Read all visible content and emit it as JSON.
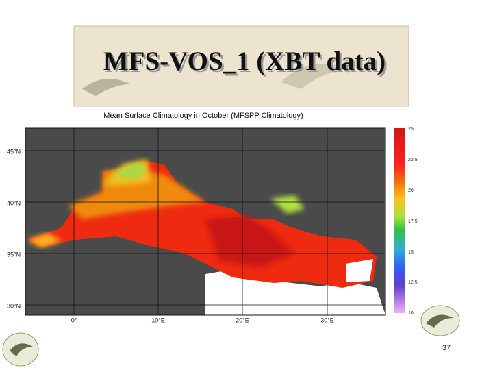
{
  "slide": {
    "title": "MFS-VOS_1 (XBT data)",
    "page_number": "37"
  },
  "map": {
    "title": "Mean Surface Climatology in October (MFSPP Climatology)",
    "latitude_labels": [
      "45°N",
      "40°N",
      "35°N",
      "30°N"
    ],
    "longitude_labels": [
      "0°",
      "10°E",
      "20°E",
      "30°E"
    ],
    "colorbar_labels": [
      "25",
      "22.5",
      "20",
      "17.5",
      "15",
      "12.5",
      "10"
    ]
  }
}
